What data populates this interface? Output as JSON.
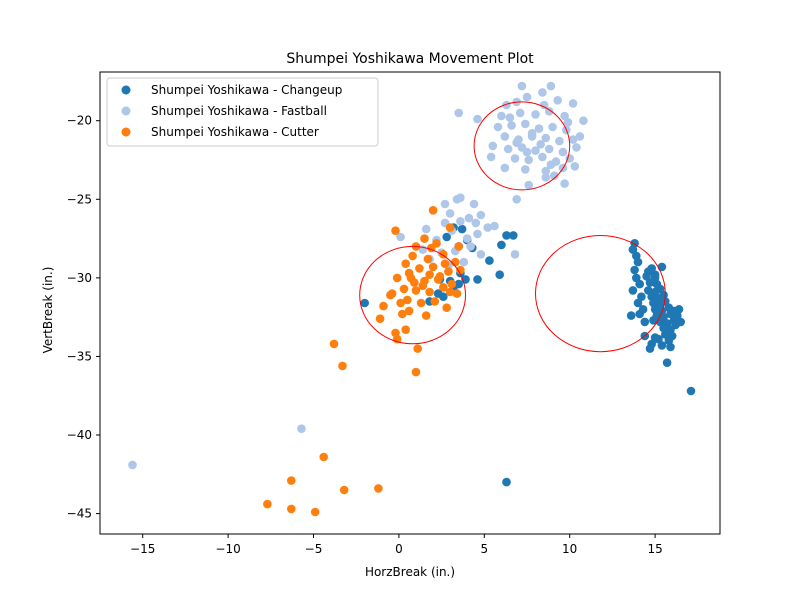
{
  "chart_data": {
    "type": "scatter",
    "title": "Shumpei Yoshikawa Movement Plot",
    "xlabel": "HorzBreak (in.)",
    "ylabel": "VertBreak (in.)",
    "xlim": [
      -17.5,
      18.8
    ],
    "ylim": [
      -46.3,
      -16.9
    ],
    "xticks": [
      -15,
      -10,
      -5,
      0,
      5,
      10,
      15
    ],
    "yticks": [
      -20,
      -25,
      -30,
      -35,
      -40,
      -45
    ],
    "legend_position": "upper-left",
    "grid": false,
    "series": [
      {
        "name": "Shumpei Yoshikawa - Changeup",
        "color": "#1f77b4",
        "points": [
          [
            13.8,
            -27.8
          ],
          [
            13.7,
            -28.2
          ],
          [
            13.9,
            -28.6
          ],
          [
            14.0,
            -29.0
          ],
          [
            13.8,
            -29.5
          ],
          [
            13.9,
            -30.0
          ],
          [
            14.1,
            -30.4
          ],
          [
            13.7,
            -30.8
          ],
          [
            14.2,
            -31.2
          ],
          [
            14.0,
            -31.6
          ],
          [
            14.3,
            -32.0
          ],
          [
            14.1,
            -32.3
          ],
          [
            13.6,
            -32.4
          ],
          [
            14.4,
            -32.8
          ],
          [
            14.6,
            -29.6
          ],
          [
            14.8,
            -29.4
          ],
          [
            14.5,
            -29.9
          ],
          [
            15.0,
            -29.8
          ],
          [
            14.7,
            -30.3
          ],
          [
            15.1,
            -30.4
          ],
          [
            14.6,
            -30.8
          ],
          [
            15.0,
            -30.9
          ],
          [
            15.3,
            -30.7
          ],
          [
            14.8,
            -31.2
          ],
          [
            15.2,
            -31.3
          ],
          [
            15.5,
            -31.1
          ],
          [
            14.9,
            -31.6
          ],
          [
            15.3,
            -31.7
          ],
          [
            15.6,
            -31.5
          ],
          [
            15.0,
            -32.0
          ],
          [
            15.4,
            -32.1
          ],
          [
            15.8,
            -31.9
          ],
          [
            15.1,
            -32.4
          ],
          [
            15.5,
            -32.5
          ],
          [
            15.9,
            -32.3
          ],
          [
            15.3,
            -32.8
          ],
          [
            15.7,
            -32.9
          ],
          [
            16.1,
            -32.7
          ],
          [
            15.5,
            -33.2
          ],
          [
            15.9,
            -33.3
          ],
          [
            16.2,
            -33.0
          ],
          [
            15.6,
            -33.6
          ],
          [
            16.0,
            -33.7
          ],
          [
            15.2,
            -33.9
          ],
          [
            15.8,
            -34.0
          ],
          [
            14.8,
            -34.2
          ],
          [
            15.4,
            -34.3
          ],
          [
            14.7,
            -34.5
          ],
          [
            15.9,
            -34.4
          ],
          [
            14.4,
            -33.7
          ],
          [
            15.0,
            -33.8
          ],
          [
            16.3,
            -32.4
          ],
          [
            16.4,
            -32.0
          ],
          [
            16.5,
            -32.8
          ],
          [
            16.1,
            -32.1
          ],
          [
            15.7,
            -35.4
          ],
          [
            17.1,
            -37.2
          ],
          [
            6.3,
            -43.0
          ],
          [
            -2.0,
            -31.6
          ],
          [
            1.8,
            -31.5
          ],
          [
            2.6,
            -31.2
          ],
          [
            2.3,
            -31.0
          ],
          [
            3.2,
            -30.8
          ],
          [
            3.5,
            -30.4
          ],
          [
            3.0,
            -30.2
          ],
          [
            3.9,
            -30.1
          ],
          [
            4.6,
            -30.1
          ],
          [
            5.9,
            -29.8
          ],
          [
            5.3,
            -28.9
          ],
          [
            6.0,
            -27.9
          ],
          [
            6.3,
            -27.3
          ],
          [
            6.7,
            -27.3
          ],
          [
            3.5,
            -28.0
          ],
          [
            4.0,
            -27.6
          ],
          [
            4.3,
            -28.1
          ],
          [
            3.7,
            -26.9
          ],
          [
            3.2,
            -26.8
          ],
          [
            2.8,
            -27.4
          ],
          [
            3.6,
            -29.7
          ],
          [
            2.4,
            -30.1
          ],
          [
            15.0,
            -30.0
          ],
          [
            15.2,
            -32.6
          ],
          [
            14.9,
            -32.7
          ],
          [
            15.4,
            -29.3
          ]
        ]
      },
      {
        "name": "Shumpei Yoshikawa - Fastball",
        "color": "#aec7e8",
        "points": [
          [
            7.2,
            -17.8
          ],
          [
            8.9,
            -17.8
          ],
          [
            7.5,
            -18.5
          ],
          [
            8.4,
            -18.2
          ],
          [
            6.9,
            -18.8
          ],
          [
            9.3,
            -18.7
          ],
          [
            6.3,
            -19.0
          ],
          [
            10.2,
            -18.9
          ],
          [
            6.0,
            -19.7
          ],
          [
            7.1,
            -19.5
          ],
          [
            8.0,
            -19.6
          ],
          [
            8.8,
            -19.4
          ],
          [
            9.7,
            -19.7
          ],
          [
            10.8,
            -20.0
          ],
          [
            5.8,
            -20.4
          ],
          [
            6.6,
            -20.3
          ],
          [
            7.4,
            -20.2
          ],
          [
            8.2,
            -20.5
          ],
          [
            9.0,
            -20.4
          ],
          [
            9.8,
            -20.6
          ],
          [
            6.2,
            -21.0
          ],
          [
            7.0,
            -21.2
          ],
          [
            7.8,
            -21.0
          ],
          [
            8.6,
            -21.1
          ],
          [
            9.4,
            -21.3
          ],
          [
            10.2,
            -21.2
          ],
          [
            5.5,
            -21.6
          ],
          [
            6.4,
            -21.8
          ],
          [
            7.2,
            -21.7
          ],
          [
            8.0,
            -21.9
          ],
          [
            8.8,
            -21.8
          ],
          [
            9.6,
            -22.0
          ],
          [
            10.4,
            -21.7
          ],
          [
            5.4,
            -22.3
          ],
          [
            6.8,
            -22.4
          ],
          [
            7.6,
            -22.5
          ],
          [
            8.4,
            -22.3
          ],
          [
            9.2,
            -22.6
          ],
          [
            10.0,
            -22.4
          ],
          [
            6.2,
            -23.0
          ],
          [
            7.4,
            -23.1
          ],
          [
            8.6,
            -23.2
          ],
          [
            9.6,
            -23.0
          ],
          [
            10.3,
            -22.9
          ],
          [
            8.6,
            -23.6
          ],
          [
            9.1,
            -23.5
          ],
          [
            7.6,
            -24.1
          ],
          [
            9.7,
            -24.0
          ],
          [
            6.9,
            -25.0
          ],
          [
            4.6,
            -19.9
          ],
          [
            3.5,
            -19.5
          ],
          [
            7.8,
            -20.8
          ],
          [
            8.3,
            -21.5
          ],
          [
            6.9,
            -21.4
          ],
          [
            7.5,
            -22.0
          ],
          [
            8.9,
            -22.8
          ],
          [
            9.9,
            -20.1
          ],
          [
            10.6,
            -21.0
          ],
          [
            6.5,
            -19.8
          ],
          [
            8.5,
            -19.0
          ],
          [
            0.1,
            -27.4
          ],
          [
            1.6,
            -26.9
          ],
          [
            2.0,
            -25.7
          ],
          [
            2.7,
            -25.3
          ],
          [
            3.4,
            -25.0
          ],
          [
            3.6,
            -24.9
          ],
          [
            4.4,
            -25.3
          ],
          [
            3.0,
            -25.9
          ],
          [
            4.1,
            -26.2
          ],
          [
            4.8,
            -26.0
          ],
          [
            5.2,
            -26.8
          ],
          [
            5.6,
            -26.7
          ],
          [
            2.2,
            -27.6
          ],
          [
            3.1,
            -27.0
          ],
          [
            4.0,
            -27.5
          ],
          [
            4.6,
            -27.2
          ],
          [
            2.5,
            -28.4
          ],
          [
            3.3,
            -28.3
          ],
          [
            4.2,
            -28.0
          ],
          [
            4.8,
            -28.5
          ],
          [
            3.8,
            -29.0
          ],
          [
            2.9,
            -29.2
          ],
          [
            1.8,
            -28.8
          ],
          [
            6.8,
            -28.5
          ],
          [
            -5.7,
            -39.6
          ],
          [
            -15.6,
            -41.9
          ],
          [
            4.5,
            -26.5
          ],
          [
            3.6,
            -26.4
          ],
          [
            2.7,
            -26.5
          ],
          [
            1.4,
            -28.2
          ]
        ]
      },
      {
        "name": "Shumpei Yoshikawa - Cutter",
        "color": "#ff7f0e",
        "points": [
          [
            -0.2,
            -27.0
          ],
          [
            2.0,
            -25.7
          ],
          [
            3.0,
            -26.8
          ],
          [
            1.5,
            -27.5
          ],
          [
            1.0,
            -28.0
          ],
          [
            2.2,
            -27.8
          ],
          [
            3.5,
            -28.0
          ],
          [
            0.8,
            -28.6
          ],
          [
            1.7,
            -28.8
          ],
          [
            2.6,
            -28.5
          ],
          [
            3.3,
            -29.0
          ],
          [
            0.4,
            -29.1
          ],
          [
            1.2,
            -29.4
          ],
          [
            2.0,
            -29.3
          ],
          [
            2.9,
            -29.6
          ],
          [
            3.6,
            -29.5
          ],
          [
            -0.1,
            -30.0
          ],
          [
            0.7,
            -30.0
          ],
          [
            1.5,
            -30.2
          ],
          [
            2.3,
            -30.1
          ],
          [
            3.1,
            -30.4
          ],
          [
            0.3,
            -30.7
          ],
          [
            1.0,
            -30.8
          ],
          [
            1.8,
            -30.9
          ],
          [
            2.6,
            -30.6
          ],
          [
            3.4,
            -31.0
          ],
          [
            -0.5,
            -31.1
          ],
          [
            0.5,
            -31.4
          ],
          [
            1.3,
            -31.6
          ],
          [
            2.1,
            -31.5
          ],
          [
            2.8,
            -31.9
          ],
          [
            -0.9,
            -31.8
          ],
          [
            0.6,
            -32.1
          ],
          [
            1.6,
            -32.4
          ],
          [
            -1.1,
            -32.6
          ],
          [
            0.2,
            -32.3
          ],
          [
            -0.2,
            -33.5
          ],
          [
            0.4,
            -33.3
          ],
          [
            -0.1,
            -33.9
          ],
          [
            1.1,
            -34.5
          ],
          [
            1.0,
            -36.0
          ],
          [
            -3.8,
            -34.2
          ],
          [
            -3.3,
            -35.6
          ],
          [
            -4.4,
            -41.4
          ],
          [
            -6.3,
            -42.9
          ],
          [
            -7.7,
            -44.4
          ],
          [
            -6.3,
            -44.7
          ],
          [
            -4.9,
            -44.9
          ],
          [
            -3.2,
            -43.5
          ],
          [
            -1.2,
            -43.4
          ],
          [
            1.8,
            -29.8
          ],
          [
            2.4,
            -29.9
          ],
          [
            0.9,
            -30.3
          ],
          [
            1.4,
            -30.5
          ],
          [
            2.7,
            -29.1
          ],
          [
            1.9,
            -28.1
          ],
          [
            0.6,
            -29.7
          ],
          [
            3.0,
            -30.9
          ],
          [
            0.1,
            -31.6
          ],
          [
            -0.4,
            -31.0
          ]
        ]
      },
      {
        "name": "",
        "color": "#ff0000",
        "type": "ellipse",
        "ellipses": [
          {
            "cx": 7.2,
            "cy": -21.6,
            "rx": 2.8,
            "ry": 2.8
          },
          {
            "cx": 0.8,
            "cy": -31.1,
            "rx": 3.1,
            "ry": 3.1
          },
          {
            "cx": 11.8,
            "cy": -31.0,
            "rx": 3.8,
            "ry": 3.7
          }
        ]
      }
    ]
  }
}
